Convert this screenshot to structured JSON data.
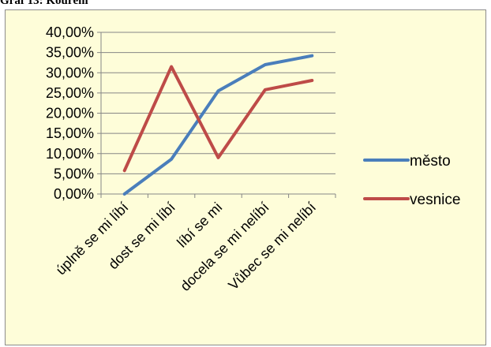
{
  "caption": "Graf 13: Kouření",
  "chart_data": {
    "type": "line",
    "title": "",
    "xlabel": "",
    "ylabel": "",
    "categories": [
      "úplně se mi líbí",
      "dost se mi líbí",
      "líbí se mi",
      "docela se mi nelíbí",
      "Vůbec se mi nelíbí"
    ],
    "series": [
      {
        "name": "město",
        "color": "#4a7ebb",
        "values": [
          0.0,
          8.6,
          25.5,
          32.0,
          34.2
        ]
      },
      {
        "name": "vesnice",
        "color": "#be4b48",
        "values": [
          5.8,
          31.5,
          9.0,
          25.8,
          28.1
        ]
      }
    ],
    "ylim": [
      0,
      40
    ],
    "yticks": [
      "0,00%",
      "5,00%",
      "10,00%",
      "15,00%",
      "20,00%",
      "25,00%",
      "30,00%",
      "35,00%",
      "40,00%"
    ],
    "grid": true,
    "legend_position": "right"
  }
}
